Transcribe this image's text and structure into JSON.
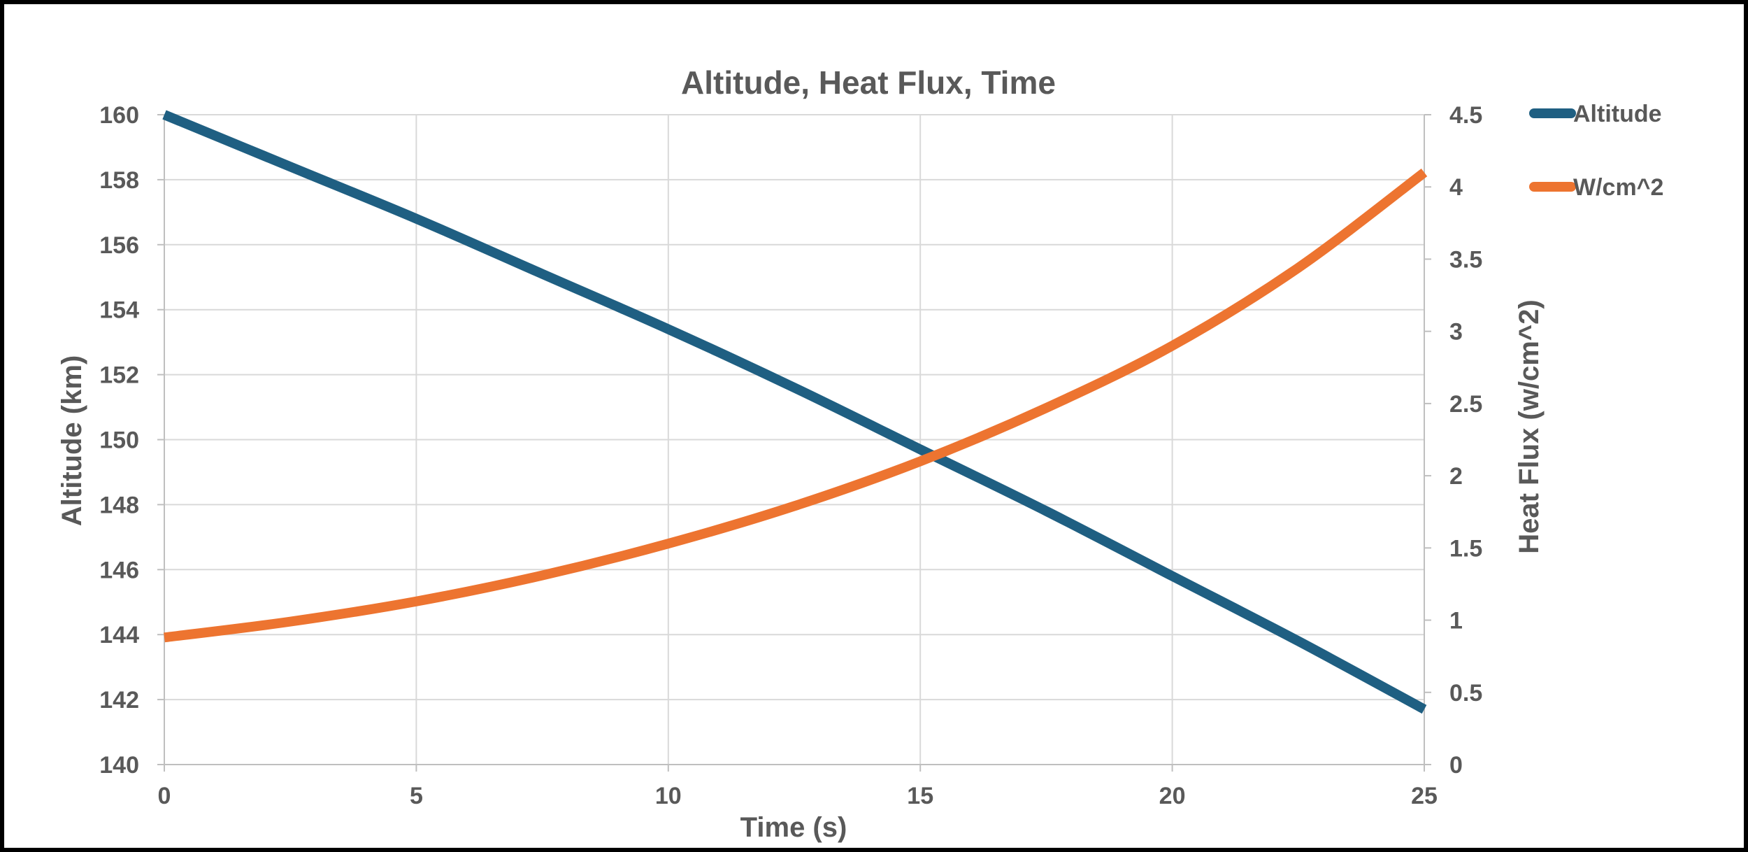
{
  "chart_data": {
    "type": "line",
    "title": "Altitude, Heat Flux, Time",
    "xlabel": "Time (s)",
    "ylabel": "Altitude (km)",
    "y2label": "Heat Flux (w/cm^2)",
    "xlim": [
      0,
      25
    ],
    "ylim": [
      140,
      160
    ],
    "y2lim": [
      0,
      4.5
    ],
    "x_ticks": [
      0,
      5,
      10,
      15,
      20,
      25
    ],
    "y_ticks": [
      140,
      142,
      144,
      146,
      148,
      150,
      152,
      154,
      156,
      158,
      160
    ],
    "y2_ticks": [
      0,
      0.5,
      1,
      1.5,
      2,
      2.5,
      3,
      3.5,
      4,
      4.5
    ],
    "grid": true,
    "legend": "right",
    "series": [
      {
        "name": "Altitude",
        "axis": "left",
        "color": "#1F5F82",
        "x": [
          0,
          2.5,
          5,
          7.5,
          10,
          12.5,
          15,
          17.5,
          20,
          22.5,
          25
        ],
        "values": [
          160,
          158.4,
          156.8,
          155.1,
          153.4,
          151.6,
          149.7,
          147.8,
          145.8,
          143.8,
          141.7
        ]
      },
      {
        "name": "W/cm^2",
        "axis": "right",
        "color": "#ED7430",
        "x": [
          0,
          2.5,
          5,
          7.5,
          10,
          12.5,
          15,
          17.5,
          20,
          22.5,
          25
        ],
        "values": [
          0.88,
          0.99,
          1.13,
          1.31,
          1.53,
          1.79,
          2.1,
          2.47,
          2.9,
          3.44,
          4.1
        ]
      }
    ]
  }
}
